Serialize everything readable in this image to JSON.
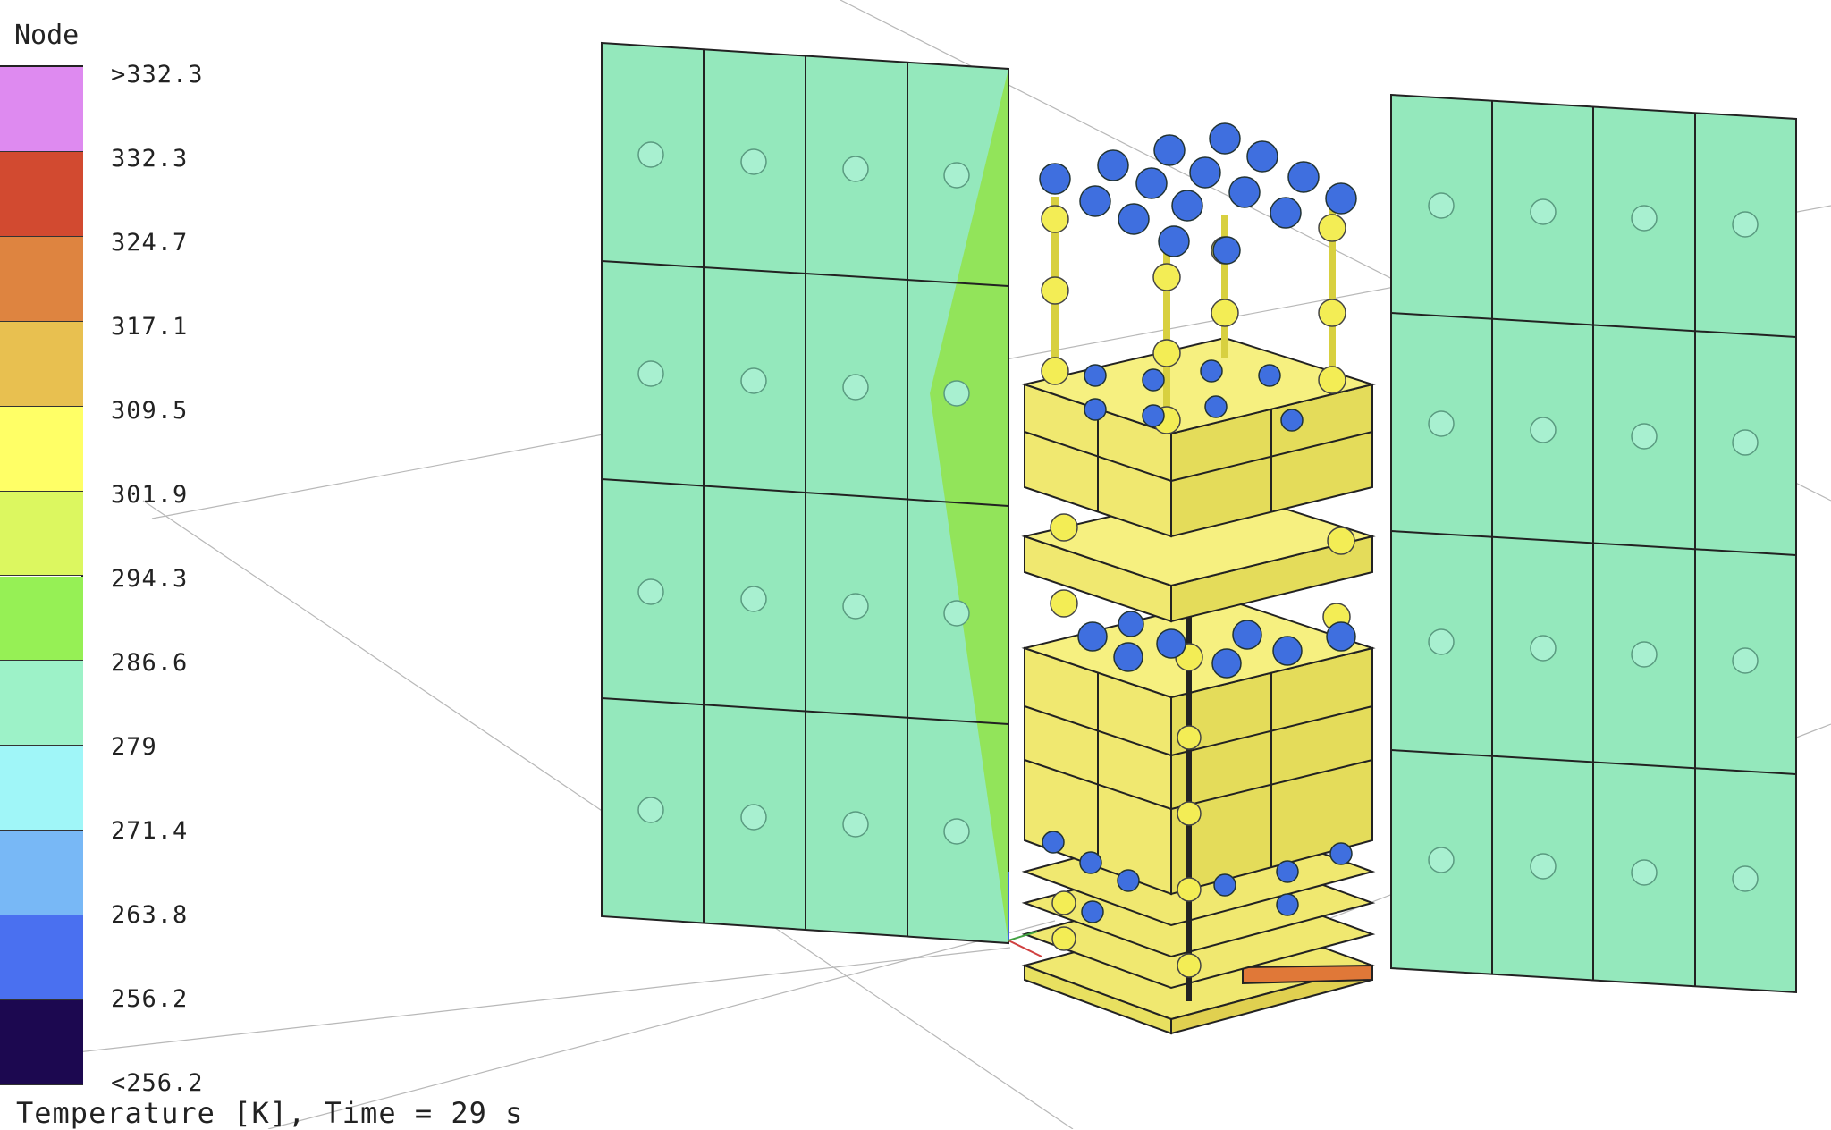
{
  "legend": {
    "title": "Node",
    "ticks": [
      ">332.3",
      "332.3",
      "324.7",
      "317.1",
      "309.5",
      "301.9",
      "294.3",
      "286.6",
      "279",
      "271.4",
      "263.8",
      "256.2",
      "<256.2"
    ],
    "colors": [
      "#de8af0",
      "#d24a30",
      "#de8440",
      "#e8c050",
      "#ffff66",
      "#dcf760",
      "#96f055",
      "#9df2c8",
      "#a0f6f8",
      "#78b8f6",
      "#4a70f0",
      "#1c0850"
    ]
  },
  "caption": "Temperature [K], Time = 29 s",
  "model_colors": {
    "panel": "#94e8bc",
    "panel_hot_strip": "#92e45a",
    "body": "#f0e870",
    "sphere_blue": "#3f6fdf",
    "sphere_yellow": "#f3ed55",
    "node_marker": "#9ef0c8",
    "base_hot": "#e07838"
  }
}
